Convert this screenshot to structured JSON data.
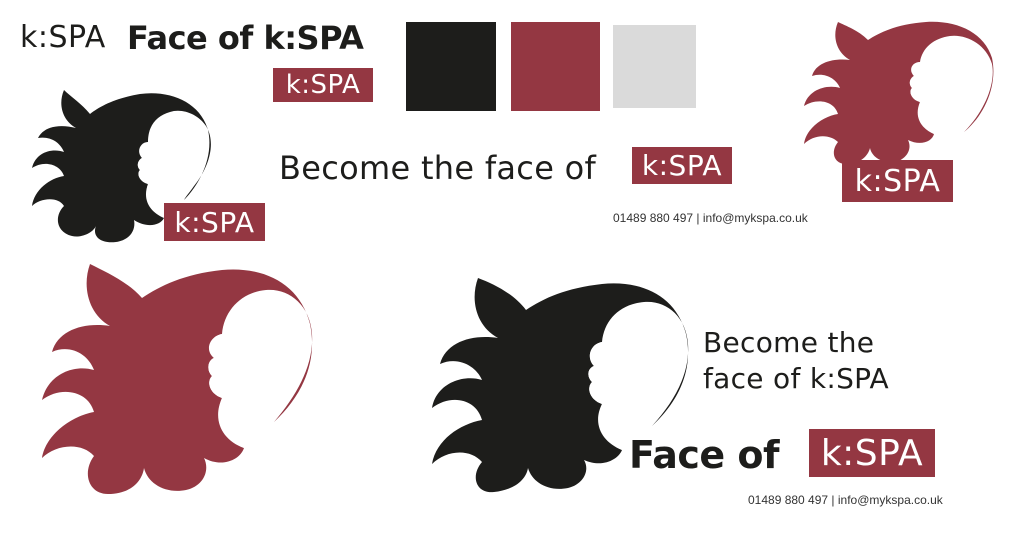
{
  "brand": {
    "wordmark": "k:SPA",
    "title": "Face of k:SPA",
    "badge": "k:SPA"
  },
  "colors": {
    "black": "#1d1d1b",
    "maroon": "#943742",
    "light_grey": "#dadada"
  },
  "swatches": [
    {
      "name": "black",
      "color": "#1d1d1b"
    },
    {
      "name": "maroon",
      "color": "#943742"
    },
    {
      "name": "light-grey",
      "color": "#dadada"
    }
  ],
  "tagline": {
    "prefix": "Become the face of",
    "line1": "Become the",
    "line2": "face of k:SPA"
  },
  "face_of": {
    "label": "Face of",
    "badge": "k:SPA"
  },
  "contact": {
    "text": "01489 880 497 | info@mykspa.co.uk"
  },
  "icons": [
    "woman-hair-silhouette-icon"
  ]
}
